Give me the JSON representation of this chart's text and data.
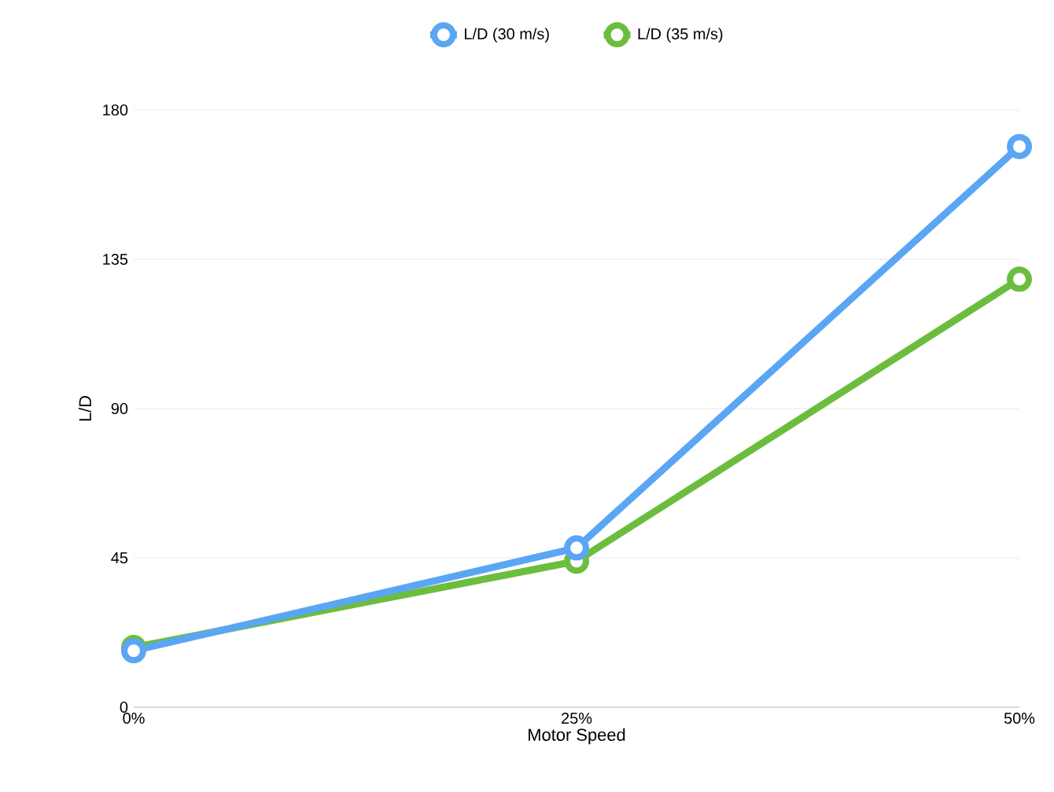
{
  "chart_data": {
    "type": "line",
    "xlabel": "Motor Speed",
    "ylabel": "L/D",
    "categories": [
      "0%",
      "25%",
      "50%"
    ],
    "series": [
      {
        "name": "L/D (30 m/s)",
        "color": "#5aa6f4",
        "values": [
          17,
          48,
          169
        ]
      },
      {
        "name": "L/D (35 m/s)",
        "color": "#6cbd3e",
        "values": [
          18,
          44,
          129
        ]
      }
    ],
    "ylim": [
      0,
      180
    ],
    "yticks": [
      0,
      45,
      90,
      135,
      180
    ],
    "grid": "y",
    "legend": "top",
    "marker": "circle",
    "line_style": "solid"
  }
}
